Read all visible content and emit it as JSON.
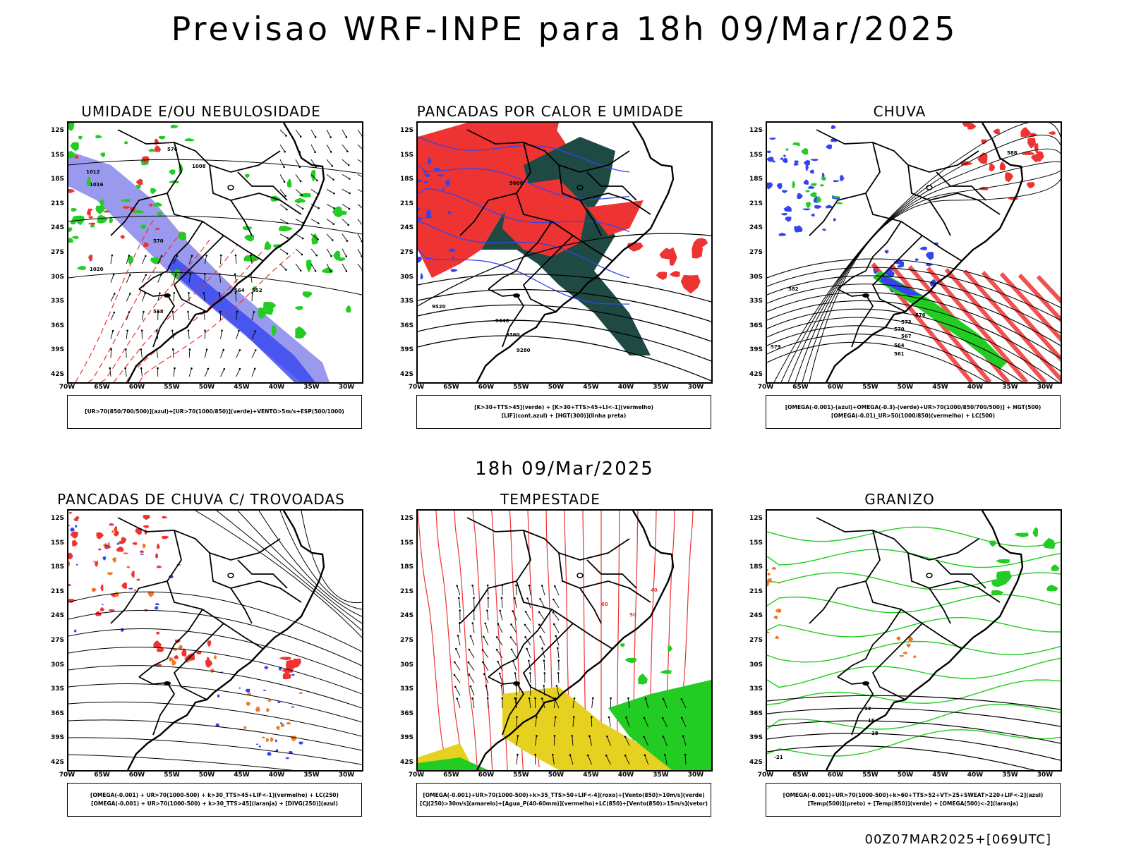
{
  "header": {
    "title": "Previsao WRF-INPE  para 18h 09/Mar/2025",
    "middle_date": "18h 09/Mar/2025",
    "run_stamp": "00Z07MAR2025+[069UTC]"
  },
  "axes": {
    "lat_labels": [
      "12S",
      "15S",
      "18S",
      "21S",
      "24S",
      "27S",
      "30S",
      "33S",
      "36S",
      "39S",
      "42S"
    ],
    "lon_labels": [
      "70W",
      "65W",
      "60W",
      "55W",
      "50W",
      "45W",
      "40W",
      "35W",
      "30W"
    ]
  },
  "colors": {
    "blue": "#3344ee",
    "light_blue": "#9999ee",
    "green": "#22cc22",
    "red": "#ee3333",
    "dark_teal": "#1f4a44",
    "yellow": "#e6d020",
    "orange": "#ee7722",
    "purple": "#9922cc",
    "black": "#000000"
  },
  "panels": [
    {
      "id": "umidade",
      "title": "UMIDADE E/OU NEBULOSIDADE",
      "legend": [
        "[UR>70(850/700/500)](azul)+[UR>70(1000/850)](verde)+VENTO>5m/s+ESP(500/1000)"
      ],
      "contour_labels": [
        "1012",
        "1008",
        "1016",
        "1020",
        "570",
        "576",
        "564",
        "558",
        "552"
      ]
    },
    {
      "id": "pancadas-calor",
      "title": "PANCADAS POR CALOR E UMIDADE",
      "legend": [
        "[K>30+TTS>45](verde) + [K>30+TTS>45+LI<-1](vermelho)",
        "[LIF](cont.azul) + [HGT(300)](linha preta)"
      ],
      "contour_labels": [
        "9600",
        "9520",
        "9440",
        "9360",
        "9280"
      ]
    },
    {
      "id": "chuva",
      "title": "CHUVA",
      "legend": [
        "[OMEGA(-0.001)-(azul)+OMEGA(-0.3)-(verde)+UR>70(1000/850/700/500)] + HGT(500)",
        "[OMEGA(-0.01)_UR>50(1000/850)(vermelho) + LC(500)"
      ],
      "contour_labels": [
        "582",
        "579",
        "576",
        "573",
        "570",
        "567",
        "564",
        "561",
        "588"
      ]
    },
    {
      "id": "trovoadas",
      "title": "PANCADAS DE CHUVA C/ TROVOADAS",
      "legend": [
        "[OMEGA(-0.001) + UR>70(1000-500) + k>30_TTS>45+LIF<-1](vermelho) + LC(250)",
        "[OMEGA(-0.001) + UR>70(1000-500) + k>30_TTS>45](laranja) + [DIVG(250)](azul)"
      ],
      "contour_labels": []
    },
    {
      "id": "tempestade",
      "title": "TEMPESTADE",
      "legend": [
        "[OMEGA(-0.001)+UR>70(1000-500)+k>35_TTS>50+LIF<-4](roxo)+[Vento(850)>10m/s](verde)",
        "[CJ(250)>30m/s](amarelo)+[Agua_P(40-60mm)](vermelho)+LC(850)+[Vento(850)>15m/s](vetor)"
      ],
      "contour_labels": [
        "40",
        "50",
        "60"
      ]
    },
    {
      "id": "granizo",
      "title": "GRANIZO",
      "legend": [
        "[OMEGA(-0.001)+UR>70(1000-500)+k>60+TTS>52+VT>25+SWEAT>220+LIF<-2](azul)",
        "[Temp(500)](preto) + [Temp(850)](verde) + [OMEGA(500)<-2](laranja)"
      ],
      "contour_labels": [
        "-12",
        "-15",
        "-18",
        "-21"
      ]
    }
  ],
  "chart_data": {
    "type": "map-panels",
    "title": "Previsao WRF-INPE  para 18h 09/Mar/2025",
    "valid_time": "18h 09/Mar/2025",
    "run": "00Z07MAR2025+[069UTC]",
    "lat_range": [
      -42,
      -12
    ],
    "lon_range": [
      -70,
      -28
    ],
    "panel_titles": [
      "UMIDADE E/OU NEBULOSIDADE",
      "PANCADAS POR CALOR E UMIDADE",
      "CHUVA",
      "PANCADAS DE CHUVA C/ TROVOADAS",
      "TEMPESTADE",
      "GRANIZO"
    ]
  }
}
